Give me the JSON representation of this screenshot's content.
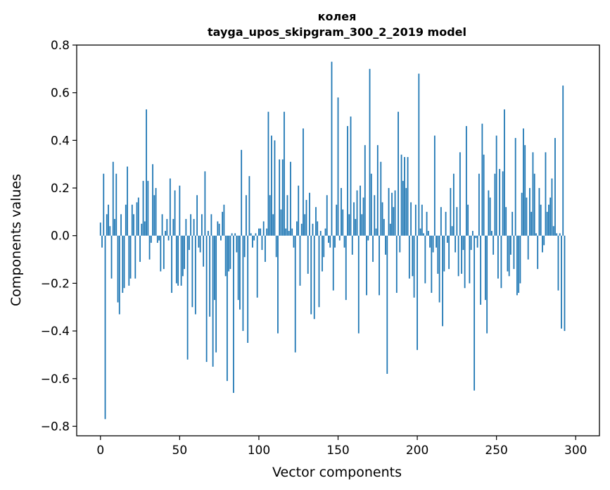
{
  "chart_data": {
    "type": "bar",
    "title_line1": "колея",
    "title_line2": "tayga_upos_skipgram_300_2_2019 model",
    "xlabel": "Vector components",
    "ylabel": "Components values",
    "xlim": [
      -15,
      315
    ],
    "ylim": [
      -0.84,
      0.8
    ],
    "xticks": [
      0,
      50,
      100,
      150,
      200,
      250,
      300
    ],
    "xtick_labels": [
      "0",
      "50",
      "100",
      "150",
      "200",
      "250",
      "300"
    ],
    "yticks": [
      -0.8,
      -0.6,
      -0.4,
      -0.2,
      0.0,
      0.2,
      0.4,
      0.6,
      0.8
    ],
    "ytick_labels": [
      "−0.8",
      "−0.6",
      "−0.4",
      "−0.2",
      "0.0",
      "0.2",
      "0.4",
      "0.6",
      "0.8"
    ],
    "bar_color": "#1f77b4",
    "values": [
      0.055,
      -0.05,
      0.26,
      -0.77,
      0.09,
      0.13,
      0.04,
      -0.18,
      0.31,
      0.07,
      0.26,
      -0.28,
      -0.33,
      0.09,
      -0.24,
      -0.22,
      0.13,
      0.29,
      -0.21,
      -0.18,
      0.13,
      0.09,
      -0.18,
      0.14,
      0.16,
      -0.11,
      0.05,
      0.23,
      0.06,
      0.53,
      0.23,
      -0.1,
      -0.03,
      0.3,
      0.17,
      0.2,
      -0.03,
      -0.02,
      -0.15,
      0.09,
      -0.14,
      0.02,
      0.07,
      -0.02,
      0.24,
      -0.24,
      0.07,
      0.19,
      -0.2,
      -0.21,
      0.21,
      -0.21,
      -0.17,
      -0.14,
      0.07,
      -0.52,
      -0.06,
      0.09,
      -0.3,
      0.07,
      -0.33,
      0.17,
      -0.05,
      -0.07,
      0.09,
      -0.13,
      0.27,
      -0.53,
      0.02,
      -0.34,
      0.09,
      -0.55,
      -0.27,
      -0.49,
      0.06,
      0.05,
      -0.02,
      0.1,
      0.13,
      -0.17,
      -0.61,
      -0.15,
      -0.14,
      0.01,
      -0.66,
      0.01,
      -0.07,
      -0.27,
      -0.31,
      0.36,
      -0.4,
      -0.09,
      0.17,
      -0.45,
      0.25,
      0.01,
      -0.05,
      -0.02,
      0.01,
      -0.26,
      0.03,
      0.03,
      -0.06,
      0.06,
      -0.11,
      0.03,
      0.52,
      0.17,
      0.42,
      0.09,
      0.4,
      -0.09,
      -0.41,
      0.32,
      0.11,
      0.32,
      0.52,
      0.03,
      0.17,
      0.02,
      0.31,
      0.03,
      -0.05,
      -0.49,
      0.06,
      0.21,
      -0.21,
      0.05,
      0.45,
      0.09,
      0.15,
      -0.16,
      0.18,
      -0.33,
      0.05,
      -0.35,
      0.12,
      0.06,
      -0.3,
      0.02,
      -0.15,
      -0.09,
      0.03,
      0.17,
      -0.03,
      -0.05,
      0.73,
      -0.23,
      -0.05,
      0.13,
      0.58,
      -0.02,
      0.2,
      0.11,
      -0.05,
      -0.27,
      0.46,
      0.09,
      0.5,
      -0.08,
      0.14,
      0.07,
      0.19,
      -0.41,
      0.21,
      0.09,
      0.16,
      0.38,
      -0.25,
      -0.02,
      0.7,
      0.26,
      -0.11,
      0.17,
      0.03,
      0.38,
      -0.25,
      0.31,
      0.14,
      0.07,
      -0.08,
      -0.58,
      0.2,
      0.05,
      0.18,
      0.12,
      0.19,
      -0.24,
      0.52,
      -0.07,
      0.34,
      0.23,
      0.33,
      0.2,
      0.33,
      -0.18,
      0.14,
      -0.17,
      -0.26,
      0.13,
      -0.48,
      0.68,
      0.03,
      0.13,
      0.01,
      -0.2,
      0.1,
      0.02,
      -0.05,
      -0.24,
      -0.07,
      0.42,
      -0.05,
      -0.16,
      -0.28,
      0.12,
      -0.38,
      -0.15,
      0.1,
      -0.03,
      -0.14,
      0.2,
      0.04,
      0.26,
      -0.07,
      0.12,
      -0.17,
      0.35,
      -0.16,
      -0.06,
      -0.22,
      0.46,
      0.13,
      -0.2,
      -0.06,
      0.02,
      -0.65,
      -0.01,
      -0.05,
      0.26,
      -0.29,
      0.47,
      0.34,
      -0.27,
      -0.41,
      0.19,
      0.16,
      0.02,
      -0.08,
      0.26,
      0.42,
      -0.18,
      0.28,
      -0.22,
      0.27,
      0.53,
      0.12,
      -0.15,
      -0.17,
      -0.08,
      0.1,
      -0.14,
      0.41,
      -0.25,
      -0.24,
      -0.2,
      0.18,
      0.45,
      0.38,
      0.16,
      -0.1,
      0.2,
      0.1,
      0.35,
      0.26,
      0.01,
      -0.14,
      0.2,
      0.13,
      -0.07,
      -0.04,
      0.35,
      0.1,
      0.13,
      0.16,
      0.24,
      0.04,
      0.41,
      0.01,
      -0.23,
      0.01,
      -0.39,
      0.63,
      -0.4
    ]
  }
}
